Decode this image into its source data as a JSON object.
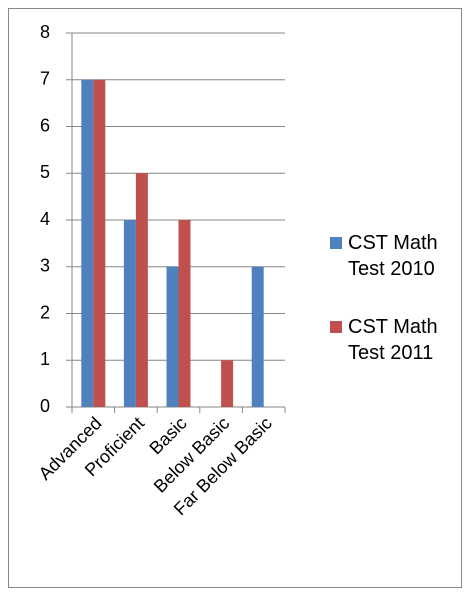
{
  "chart_data": {
    "type": "bar",
    "categories": [
      "Advanced",
      "Proficient",
      "Basic",
      "Below Basic",
      "Far Below Basic"
    ],
    "series": [
      {
        "name": "CST Math Test 2010",
        "color": "#4f81bd",
        "values": [
          7,
          4,
          3,
          0,
          3
        ]
      },
      {
        "name": "CST Math Test 2011",
        "color": "#c0504d",
        "values": [
          7,
          5,
          4,
          1,
          0
        ]
      }
    ],
    "ylim": [
      0,
      8
    ],
    "yticks": [
      0,
      1,
      2,
      3,
      4,
      5,
      6,
      7,
      8
    ],
    "grid": true,
    "legend": "right"
  }
}
